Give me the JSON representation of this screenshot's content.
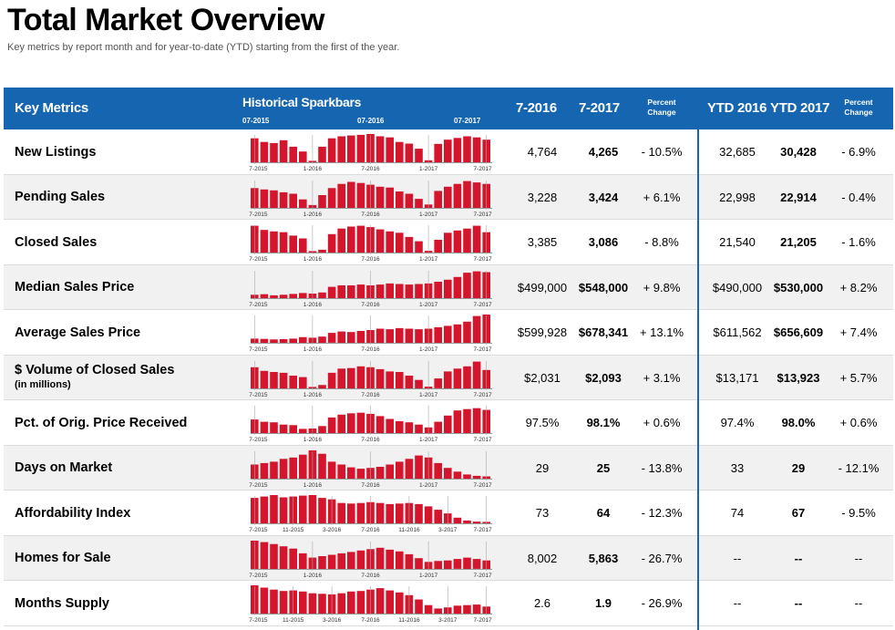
{
  "title": "Total Market Overview",
  "subtitle": "Key metrics by report month and for year-to-date (YTD) starting from the first of the year.",
  "header": {
    "key_metrics": "Key Metrics",
    "sparkbars": "Historical Sparkbars",
    "spark_dates": [
      "07-2015",
      "07-2016",
      "07-2017"
    ],
    "m1": "7-2016",
    "m2": "7-2017",
    "pct": [
      "Percent",
      "Change"
    ],
    "y1": "YTD 2016",
    "y2": "YTD 2017",
    "ypct": [
      "Percent",
      "Change"
    ]
  },
  "colors": {
    "header": "#1565b0",
    "bar": "#d4152b",
    "alt_row": "#f1f1f1"
  },
  "rows": [
    {
      "label": "New Listings",
      "sub": "",
      "m1": "4,764",
      "m2": "4,265",
      "pct": "- 10.5%",
      "y1": "32,685",
      "y2": "30,428",
      "ypct": "- 6.9%",
      "ticks": [
        "7-2015",
        "1-2016",
        "7-2016",
        "1-2017",
        "7-2017"
      ],
      "bars": [
        0.85,
        0.72,
        0.68,
        0.78,
        0.55,
        0.38,
        0.05,
        0.55,
        0.85,
        0.92,
        0.95,
        0.97,
        1.0,
        0.92,
        0.88,
        0.72,
        0.66,
        0.48,
        0.07,
        0.65,
        0.8,
        0.86,
        0.92,
        0.88,
        0.8
      ]
    },
    {
      "label": "Pending Sales",
      "sub": "",
      "m1": "3,228",
      "m2": "3,424",
      "pct": "+ 6.1%",
      "y1": "22,998",
      "y2": "22,914",
      "ypct": "- 0.4%",
      "ticks": [
        "7-2015",
        "1-2016",
        "7-2016",
        "1-2017",
        "7-2017"
      ],
      "bars": [
        0.7,
        0.65,
        0.62,
        0.55,
        0.5,
        0.3,
        0.1,
        0.45,
        0.7,
        0.85,
        0.92,
        0.88,
        0.82,
        0.75,
        0.72,
        0.58,
        0.5,
        0.32,
        0.12,
        0.6,
        0.75,
        0.85,
        0.95,
        0.9,
        0.85
      ]
    },
    {
      "label": "Closed Sales",
      "sub": "",
      "m1": "3,385",
      "m2": "3,086",
      "pct": "- 8.8%",
      "y1": "21,540",
      "y2": "21,205",
      "ypct": "- 1.6%",
      "ticks": [
        "7-2015",
        "1-2016",
        "7-2016",
        "1-2017",
        "7-2017"
      ],
      "bars": [
        0.95,
        0.8,
        0.75,
        0.72,
        0.6,
        0.5,
        0.05,
        0.1,
        0.65,
        0.85,
        0.92,
        0.95,
        0.9,
        0.82,
        0.75,
        0.7,
        0.55,
        0.4,
        0.06,
        0.45,
        0.7,
        0.78,
        0.85,
        0.95,
        0.72
      ]
    },
    {
      "label": "Median Sales Price",
      "sub": "",
      "m1": "$499,000",
      "m2": "$548,000",
      "pct": "+ 9.8%",
      "y1": "$490,000",
      "y2": "$530,000",
      "ypct": "+ 8.2%",
      "ticks": [
        "7-2015",
        "1-2016",
        "7-2016",
        "1-2017",
        "7-2017"
      ],
      "bars": [
        0.12,
        0.14,
        0.1,
        0.12,
        0.15,
        0.18,
        0.16,
        0.2,
        0.4,
        0.45,
        0.45,
        0.48,
        0.45,
        0.48,
        0.52,
        0.5,
        0.48,
        0.5,
        0.52,
        0.58,
        0.65,
        0.75,
        0.9,
        0.95,
        0.92
      ]
    },
    {
      "label": "Average Sales Price",
      "sub": "",
      "m1": "$599,928",
      "m2": "$678,341",
      "pct": "+ 13.1%",
      "y1": "$611,562",
      "y2": "$656,609",
      "ypct": "+ 7.4%",
      "ticks": [
        "7-2015",
        "1-2016",
        "7-2016",
        "1-2017",
        "7-2017"
      ],
      "bars": [
        0.15,
        0.14,
        0.12,
        0.13,
        0.15,
        0.2,
        0.18,
        0.22,
        0.35,
        0.4,
        0.38,
        0.42,
        0.45,
        0.5,
        0.48,
        0.52,
        0.5,
        0.48,
        0.5,
        0.55,
        0.6,
        0.65,
        0.75,
        0.95,
        1.0
      ]
    },
    {
      "label": "$ Volume of Closed Sales",
      "sub": "(in millions)",
      "m1": "$2,031",
      "m2": "$2,093",
      "pct": "+ 3.1%",
      "y1": "$13,171",
      "y2": "$13,923",
      "ypct": "+ 5.7%",
      "ticks": [
        "7-2015",
        "1-2016",
        "7-2016",
        "1-2017",
        "7-2017"
      ],
      "bars": [
        0.75,
        0.62,
        0.58,
        0.55,
        0.45,
        0.4,
        0.05,
        0.12,
        0.55,
        0.7,
        0.72,
        0.78,
        0.75,
        0.68,
        0.6,
        0.58,
        0.45,
        0.3,
        0.06,
        0.35,
        0.6,
        0.7,
        0.78,
        0.95,
        0.65
      ]
    },
    {
      "label": "Pct. of Orig. Price Received",
      "sub": "",
      "m1": "97.5%",
      "m2": "98.1%",
      "pct": "+ 0.6%",
      "y1": "97.4%",
      "y2": "98.0%",
      "ypct": "+ 0.6%",
      "ticks": [
        "7-2015",
        "1-2016",
        "7-2016",
        "1-2017",
        "7-2017"
      ],
      "bars": [
        0.48,
        0.4,
        0.38,
        0.3,
        0.28,
        0.15,
        0.16,
        0.25,
        0.55,
        0.65,
        0.7,
        0.72,
        0.68,
        0.6,
        0.5,
        0.42,
        0.38,
        0.3,
        0.2,
        0.4,
        0.62,
        0.8,
        0.85,
        0.88,
        0.82
      ]
    },
    {
      "label": "Days on Market",
      "sub": "",
      "m1": "29",
      "m2": "25",
      "pct": "- 13.8%",
      "y1": "33",
      "y2": "29",
      "ypct": "- 12.1%",
      "ticks": [
        "7-2015",
        "1-2016",
        "7-2016",
        "1-2017",
        "7-2017"
      ],
      "bars": [
        0.5,
        0.55,
        0.6,
        0.7,
        0.75,
        0.85,
        1.0,
        0.88,
        0.6,
        0.5,
        0.4,
        0.35,
        0.38,
        0.42,
        0.5,
        0.6,
        0.7,
        0.82,
        0.75,
        0.55,
        0.38,
        0.25,
        0.15,
        0.1,
        0.08
      ]
    },
    {
      "label": "Affordability Index",
      "sub": "",
      "m1": "73",
      "m2": "64",
      "pct": "- 12.3%",
      "y1": "74",
      "y2": "67",
      "ypct": "- 9.5%",
      "ticks": [
        "7-2015",
        "11-2015",
        "3-2016",
        "7-2016",
        "11-2016",
        "3-2017",
        "7-2017"
      ],
      "bars": [
        0.9,
        0.95,
        1.0,
        0.92,
        0.95,
        0.98,
        1.0,
        0.9,
        0.85,
        0.72,
        0.7,
        0.72,
        0.75,
        0.72,
        0.68,
        0.7,
        0.72,
        0.68,
        0.6,
        0.48,
        0.35,
        0.2,
        0.1,
        0.06,
        0.05
      ]
    },
    {
      "label": "Homes for Sale",
      "sub": "",
      "m1": "8,002",
      "m2": "5,863",
      "pct": "- 26.7%",
      "y1": "--",
      "y2": "--",
      "ypct": "--",
      "ticks": [
        "7-2015",
        "1-2016",
        "7-2016",
        "1-2017",
        "7-2017"
      ],
      "bars": [
        1.0,
        0.95,
        0.88,
        0.8,
        0.72,
        0.55,
        0.4,
        0.45,
        0.5,
        0.55,
        0.6,
        0.65,
        0.7,
        0.75,
        0.68,
        0.62,
        0.52,
        0.38,
        0.25,
        0.28,
        0.3,
        0.35,
        0.4,
        0.35,
        0.3
      ]
    },
    {
      "label": "Months Supply",
      "sub": "",
      "m1": "2.6",
      "m2": "1.9",
      "pct": "- 26.9%",
      "y1": "--",
      "y2": "--",
      "ypct": "--",
      "ticks": [
        "7-2015",
        "11-2015",
        "3-2016",
        "7-2016",
        "11-2016",
        "3-2017",
        "7-2017"
      ],
      "bars": [
        1.0,
        0.92,
        0.85,
        0.8,
        0.82,
        0.78,
        0.72,
        0.7,
        0.68,
        0.72,
        0.78,
        0.8,
        0.85,
        0.9,
        0.82,
        0.75,
        0.65,
        0.5,
        0.3,
        0.18,
        0.22,
        0.28,
        0.3,
        0.32,
        0.25
      ]
    }
  ]
}
